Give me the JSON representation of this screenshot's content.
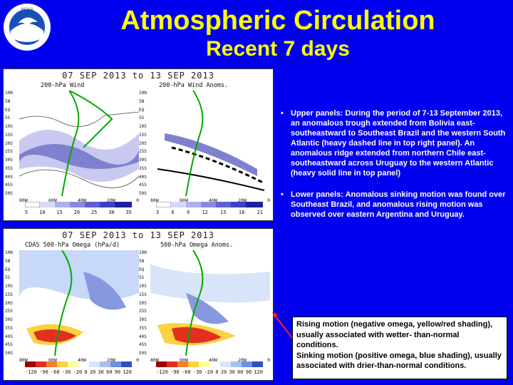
{
  "header": {
    "title": "Atmospheric Circulation",
    "subtitle": "Recent 7 days"
  },
  "colors": {
    "background": "#0000ee",
    "title": "#ffff00",
    "text": "#ffffff"
  },
  "top_figure": {
    "title": "07 SEP 2013 to 13 SEP 2013",
    "left_label": "200-hPa Wind",
    "right_label": "200-hPa Wind Anoms.",
    "lat_labels": [
      "10N",
      "5N",
      "EQ",
      "5S",
      "10S",
      "15S",
      "20S",
      "25S",
      "30S",
      "35S",
      "40S",
      "45S",
      "50S"
    ],
    "lon_labels": [
      "80W",
      "60W",
      "40W",
      "20W",
      "0"
    ],
    "left_colorbar": [
      "5",
      "10",
      "15",
      "20",
      "25",
      "30",
      "35"
    ],
    "right_colorbar": [
      "3",
      "6",
      "9",
      "12",
      "15",
      "18",
      "21"
    ]
  },
  "bottom_figure": {
    "title": "07 SEP 2013 to 13 SEP 2013",
    "left_label": "CDAS 500-hPa Omega (hPa/d)",
    "right_label": "500-hPa Omega Anoms.",
    "lat_labels": [
      "10N",
      "5N",
      "EQ",
      "5S",
      "10S",
      "15S",
      "20S",
      "25S",
      "30S",
      "35S",
      "40S",
      "45S",
      "50S"
    ],
    "lon_labels": [
      "80W",
      "60W",
      "40W",
      "20W",
      "0"
    ],
    "colorbar": [
      "-120",
      "-90",
      "-60",
      "-30",
      "-20",
      "0",
      "20",
      "30",
      "60",
      "90",
      "120"
    ]
  },
  "bullets": [
    "Upper panels: During the period of 7-13 September 2013, an anomalous trough extended from Bolivia east-southeastward to Southeast Brazil and the western South Atlantic (heavy dashed line in top right panel). An anomalous ridge extended from northern Chile east-southeastward across Uruguay to the western Atlantic (heavy solid line in top panel)",
    "Lower panels: Anomalous sinking motion was found over Southeast Brazil, and anomalous rising motion was observed over eastern Argentina and Uruguay."
  ],
  "bullet_symbol": "•",
  "callout": {
    "line1": "Rising motion (negative omega, yellow/red shading), usually associated with wetter- than-normal conditions.",
    "line2": "Sinking motion (positive omega, blue shading), usually associated with drier-than-normal conditions."
  }
}
